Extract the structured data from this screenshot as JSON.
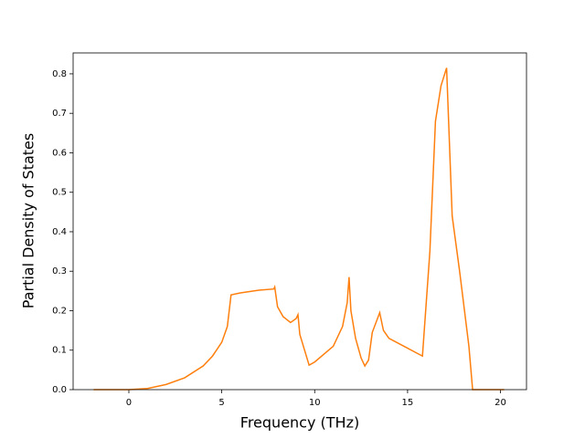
{
  "chart_data": {
    "type": "line",
    "x_label": "Frequency (THz)",
    "y_label": "Partial Density of States",
    "x": [
      -1.9,
      0,
      1,
      2,
      3,
      4,
      4.5,
      5,
      5.3,
      5.5,
      6,
      7,
      7.8,
      7.85,
      8,
      8.3,
      8.7,
      9,
      9.1,
      9.2,
      9.7,
      10,
      11,
      11.5,
      11.75,
      11.85,
      11.95,
      12.2,
      12.5,
      12.7,
      12.9,
      13.1,
      13.5,
      13.7,
      14,
      15,
      15.8,
      16.2,
      16.5,
      16.8,
      17.1,
      17.4,
      17.8,
      18.3,
      18.5,
      20.2
    ],
    "series": [
      {
        "color": "#ff7f0e",
        "values": [
          0,
          0,
          0.003,
          0.013,
          0.03,
          0.06,
          0.085,
          0.12,
          0.16,
          0.24,
          0.245,
          0.252,
          0.255,
          0.26,
          0.21,
          0.185,
          0.17,
          0.18,
          0.19,
          0.14,
          0.062,
          0.07,
          0.11,
          0.16,
          0.22,
          0.285,
          0.2,
          0.13,
          0.08,
          0.06,
          0.075,
          0.145,
          0.195,
          0.15,
          0.13,
          0.105,
          0.085,
          0.35,
          0.68,
          0.77,
          0.815,
          0.44,
          0.3,
          0.11,
          0.0,
          0
        ]
      }
    ],
    "xlim": [
      -3.0,
      21.4
    ],
    "ylim": [
      0,
      0.853
    ],
    "xticks": [
      0,
      5,
      10,
      15,
      20
    ],
    "yticks": [
      {
        "value": 0,
        "label": "0.0"
      },
      0.1,
      0.2,
      0.3,
      0.4,
      0.5,
      0.6,
      0.7,
      0.8
    ]
  }
}
